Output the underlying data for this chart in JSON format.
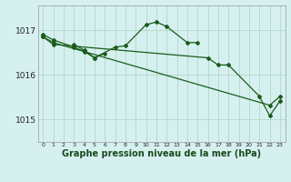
{
  "background_color": "#d6f0f0",
  "grid_color": "#b0d8c8",
  "line_color": "#1a5c1a",
  "marker_color": "#1a5c1a",
  "xlabel": "Graphe pression niveau de la mer (hPa)",
  "xlabel_fontsize": 7,
  "ylabel_labels": [
    "1015",
    "1016",
    "1017"
  ],
  "ylabel_values": [
    1015,
    1016,
    1017
  ],
  "xlim": [
    -0.5,
    23.5
  ],
  "ylim": [
    1014.5,
    1017.55
  ],
  "xtick_labels": [
    "0",
    "1",
    "2",
    "3",
    "4",
    "5",
    "6",
    "7",
    "8",
    "9",
    "10",
    "11",
    "12",
    "13",
    "14",
    "15",
    "16",
    "17",
    "18",
    "19",
    "20",
    "21",
    "22",
    "23"
  ],
  "line1_x": [
    0,
    1,
    3,
    4,
    5,
    7,
    8,
    10,
    11,
    12,
    14,
    15
  ],
  "line1_y": [
    1016.9,
    1016.78,
    1016.62,
    1016.52,
    1016.38,
    1016.62,
    1016.65,
    1017.12,
    1017.18,
    1017.08,
    1016.72,
    1016.72
  ],
  "line2_x": [
    3,
    4,
    5,
    6
  ],
  "line2_y": [
    1016.68,
    1016.55,
    1016.38,
    1016.48
  ],
  "line3_x": [
    0,
    1,
    16,
    17,
    18,
    21,
    22,
    23
  ],
  "line3_y": [
    1016.85,
    1016.68,
    1016.38,
    1016.22,
    1016.22,
    1015.52,
    1015.08,
    1015.42
  ],
  "line4_x": [
    0,
    1,
    22,
    23
  ],
  "line4_y": [
    1016.85,
    1016.72,
    1015.32,
    1015.52
  ]
}
